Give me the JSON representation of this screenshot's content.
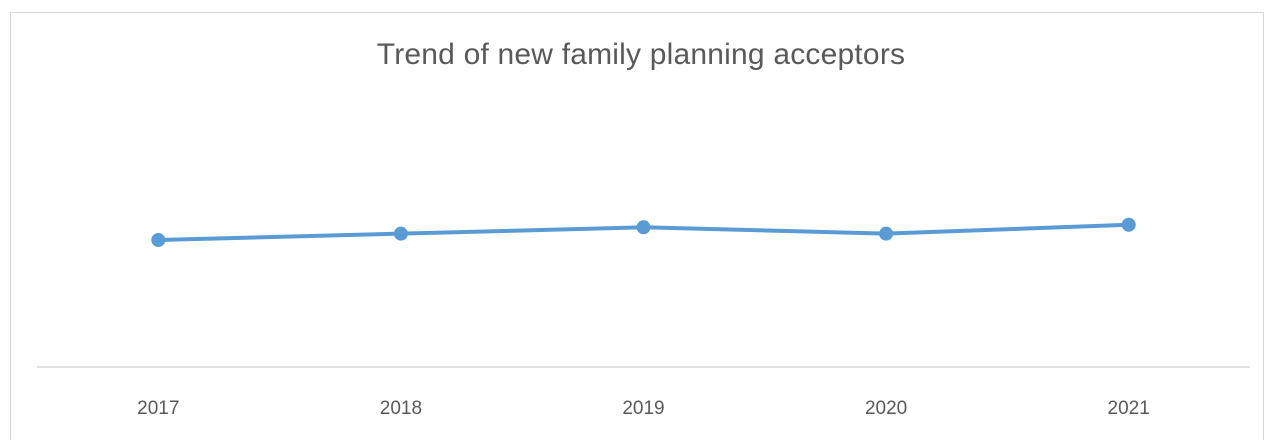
{
  "chart_data": {
    "type": "line",
    "title": "Trend of new family planning acceptors",
    "xlabel": "",
    "ylabel": "",
    "categories": [
      "2017",
      "2018",
      "2019",
      "2020",
      "2021"
    ],
    "series": [
      {
        "values": [
          5.0,
          5.25,
          5.5,
          5.25,
          5.6
        ]
      }
    ],
    "ylim": [
      0,
      10
    ],
    "grid": false,
    "legend": "none",
    "colors": {
      "line": "#5b9bd5",
      "axis": "#d9d9d9",
      "text": "#595959"
    }
  }
}
